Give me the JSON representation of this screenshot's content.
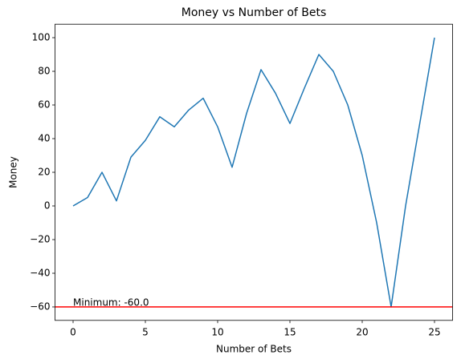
{
  "chart_data": {
    "type": "line",
    "title": "Money vs Number of Bets",
    "x_label": "Number of Bets",
    "y_label": "Money",
    "x": [
      0,
      1,
      2,
      3,
      4,
      5,
      6,
      7,
      8,
      9,
      10,
      11,
      12,
      13,
      14,
      15,
      16,
      17,
      18,
      19,
      20,
      21,
      22,
      23,
      24,
      25
    ],
    "series": [
      {
        "name": "Money",
        "color": "#1f77b4",
        "values": [
          0,
          5,
          20,
          3,
          29,
          39,
          53,
          47,
          57,
          64,
          47,
          23,
          55,
          81,
          67,
          49,
          70,
          90,
          80,
          60,
          30,
          -10,
          -60,
          0,
          50,
          100
        ]
      }
    ],
    "xlim": [
      -1.25,
      26.25
    ],
    "ylim": [
      -68,
      108
    ],
    "xticks": [
      0,
      5,
      10,
      15,
      20,
      25
    ],
    "yticks": [
      {
        "value": -60,
        "label": "−60"
      },
      {
        "value": -40,
        "label": "−40"
      },
      {
        "value": -20,
        "label": "−20"
      },
      0,
      20,
      40,
      60,
      80,
      100
    ],
    "hline": {
      "value": -60,
      "color": "#ff0000",
      "label": "Minimum: -60.0"
    },
    "grid": false
  }
}
